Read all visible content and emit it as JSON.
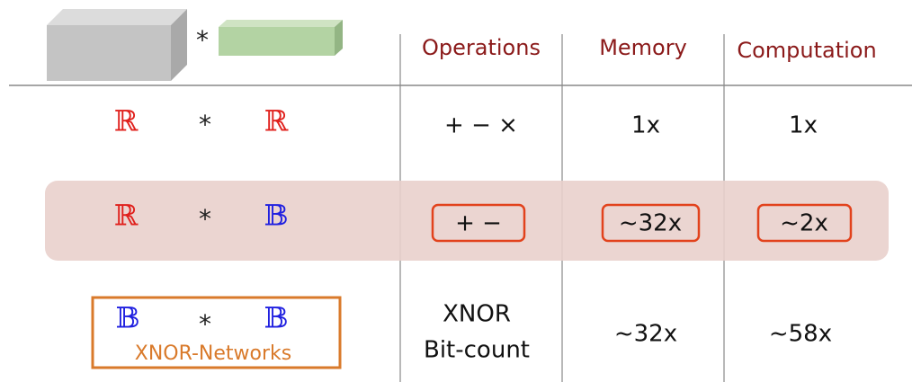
{
  "header": {
    "operator": "*",
    "columns": [
      "Operations",
      "Memory",
      "Computation"
    ]
  },
  "rows": [
    {
      "left": "ℝ",
      "operator": "*",
      "right": "ℝ",
      "operations": [
        "+ − ×"
      ],
      "memory": "1x",
      "computation": "1x"
    },
    {
      "left": "ℝ",
      "operator": "*",
      "right": "𝔹",
      "operations": [
        "+ −"
      ],
      "memory": "~32x",
      "computation": "~2x"
    },
    {
      "left": "𝔹",
      "operator": "*",
      "right": "𝔹",
      "label": "XNOR-Networks",
      "operations": [
        "XNOR",
        "Bit-count"
      ],
      "memory": "~32x",
      "computation": "~58x"
    }
  ]
}
